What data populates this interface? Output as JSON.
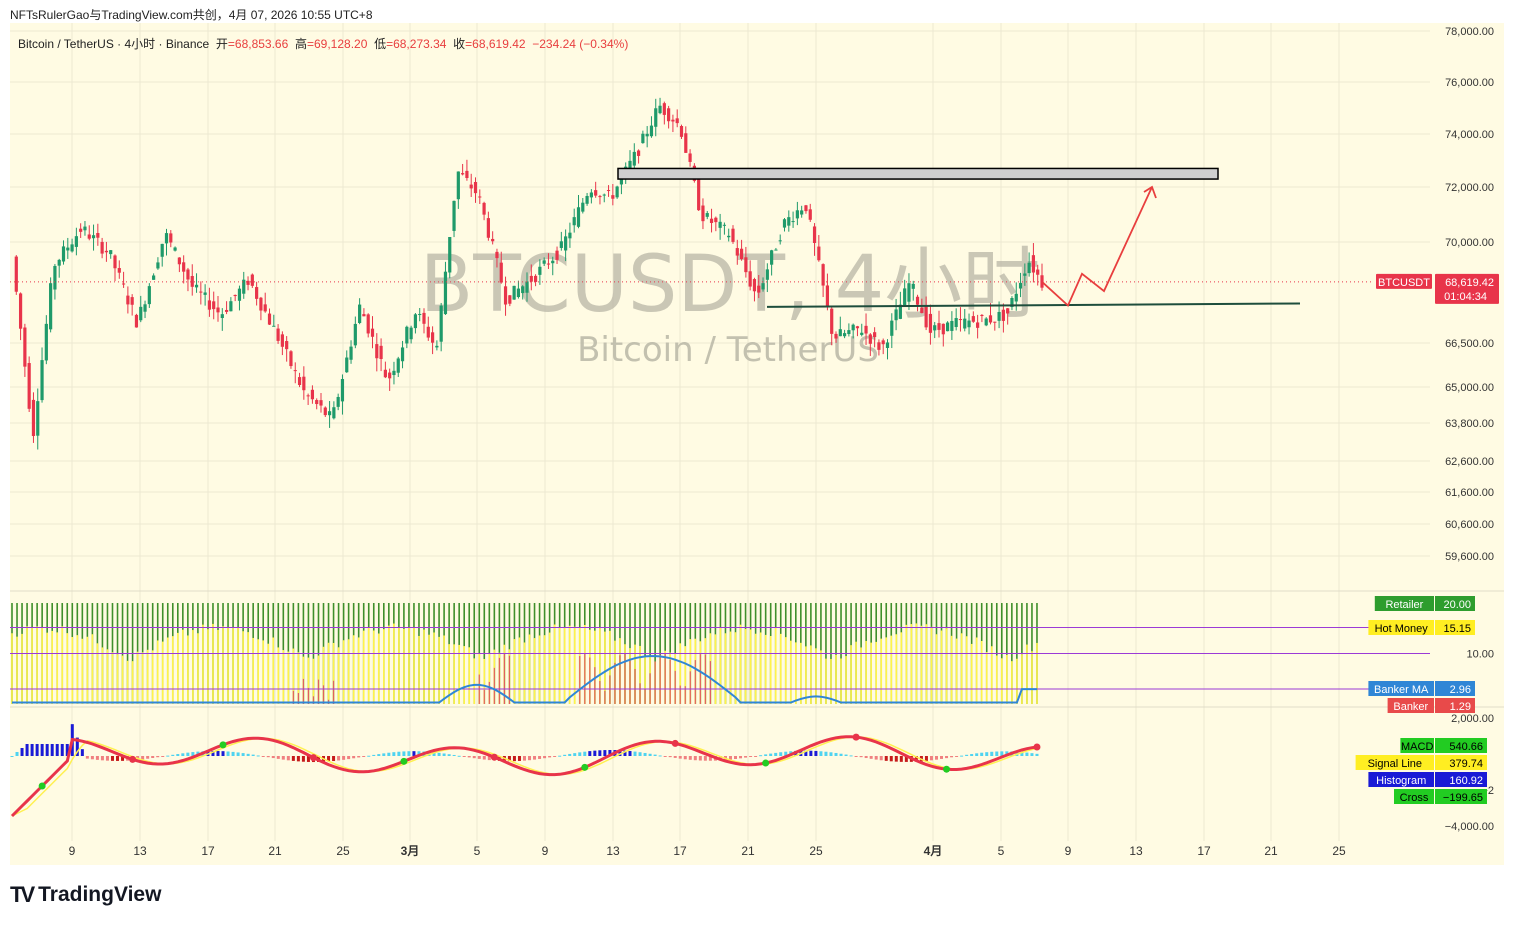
{
  "header": {
    "title": "NFTsRulerGao与TradingView.com共创，4月 07, 2026 10:55 UTC+8"
  },
  "legend": {
    "symbol": "Bitcoin / TetherUS · 4小时 · Binance",
    "open_label": "开",
    "open": "=68,853.66",
    "high_label": "高",
    "high": "=69,128.20",
    "low_label": "低",
    "low": "=68,273.34",
    "close_label": "收",
    "close": "=68,619.42",
    "change": "−234.24 (−0.34%)"
  },
  "watermark": {
    "line1": "BTCUSDT, 4小时",
    "line2": "Bitcoin / TetherUS"
  },
  "price_badge": {
    "symbol": "BTCUSDT",
    "price": "68,619.42",
    "countdown": "01:04:34"
  },
  "banker_badges": [
    {
      "label": "Retailer",
      "value": "20.00",
      "color": "#2e9d2e",
      "text_color": "#ffffff"
    },
    {
      "label": "Hot Money",
      "value": "15.15",
      "color": "#ffee22",
      "text_color": "#000000"
    },
    {
      "label": "Banker MA",
      "value": "2.96",
      "color": "#2f86d6",
      "text_color": "#ffffff"
    },
    {
      "label": "Banker",
      "value": "1.29",
      "color": "#e84a4a",
      "text_color": "#ffffff"
    }
  ],
  "macd_badges": [
    {
      "label": "MACD",
      "value": "540.66",
      "color": "#22cc22",
      "text_color": "#000000"
    },
    {
      "label": "Signal Line",
      "value": "379.74",
      "color": "#ffee22",
      "text_color": "#000000"
    },
    {
      "label": "Histogram",
      "value": "160.92",
      "color": "#1a1ad6",
      "text_color": "#ffffff"
    },
    {
      "label": "Cross",
      "value": "−199.65",
      "color": "#22cc22",
      "text_color": "#000000"
    }
  ],
  "branding": {
    "logo_text": "TradingView",
    "logo_icon": "tradingview-logo-icon"
  },
  "chart_data": [
    {
      "type": "candlestick",
      "title": "Bitcoin / TetherUS · 4小时 · Binance",
      "y_axis": {
        "tick_labels": [
          "78,000.00",
          "76,000.00",
          "74,000.00",
          "72,000.00",
          "70,000.00",
          "66,500.00",
          "65,000.00",
          "63,800.00",
          "62,600.00",
          "61,600.00",
          "60,600.00",
          "59,600.00"
        ],
        "tick_values": [
          78000,
          76000,
          74000,
          72000,
          70000,
          66500,
          65000,
          63800,
          62600,
          61600,
          60600,
          59600
        ]
      },
      "x_axis": {
        "tick_labels": [
          "9",
          "13",
          "17",
          "21",
          "25",
          "3月",
          "5",
          "9",
          "13",
          "17",
          "21",
          "25",
          "4月",
          "5",
          "9",
          "13",
          "17",
          "21",
          "25"
        ]
      },
      "last_price": 68619.42,
      "resistance_zone": [
        72300,
        72700
      ],
      "support_line": [
        67750,
        67800
      ],
      "projection_path": [
        {
          "day": "4月 7",
          "price": 68619
        },
        {
          "day": "4月 8",
          "price": 67800
        },
        {
          "day": "4月 9",
          "price": 68900
        },
        {
          "day": "4月 10",
          "price": 68300
        },
        {
          "day": "4月 12",
          "price": 72000
        }
      ],
      "price_path": [
        {
          "x": 0,
          "y": 69500
        },
        {
          "x": 3,
          "y": 63400
        },
        {
          "x": 6,
          "y": 69200
        },
        {
          "x": 10,
          "y": 70500
        },
        {
          "x": 14,
          "y": 69600
        },
        {
          "x": 18,
          "y": 67200
        },
        {
          "x": 22,
          "y": 70300
        },
        {
          "x": 26,
          "y": 68400
        },
        {
          "x": 30,
          "y": 67500
        },
        {
          "x": 34,
          "y": 68700
        },
        {
          "x": 38,
          "y": 66800
        },
        {
          "x": 42,
          "y": 64800
        },
        {
          "x": 46,
          "y": 63900
        },
        {
          "x": 50,
          "y": 67800
        },
        {
          "x": 54,
          "y": 65200
        },
        {
          "x": 58,
          "y": 67600
        },
        {
          "x": 61,
          "y": 66300
        },
        {
          "x": 64,
          "y": 72600
        },
        {
          "x": 67,
          "y": 71700
        },
        {
          "x": 71,
          "y": 68000
        },
        {
          "x": 75,
          "y": 68800
        },
        {
          "x": 79,
          "y": 69800
        },
        {
          "x": 83,
          "y": 72000
        },
        {
          "x": 86,
          "y": 71600
        },
        {
          "x": 90,
          "y": 73400
        },
        {
          "x": 93,
          "y": 75100
        },
        {
          "x": 96,
          "y": 74300
        },
        {
          "x": 99,
          "y": 71000
        },
        {
          "x": 103,
          "y": 70300
        },
        {
          "x": 107,
          "y": 68100
        },
        {
          "x": 111,
          "y": 70700
        },
        {
          "x": 114,
          "y": 71400
        },
        {
          "x": 118,
          "y": 66700
        },
        {
          "x": 122,
          "y": 67000
        },
        {
          "x": 125,
          "y": 66300
        },
        {
          "x": 129,
          "y": 68600
        },
        {
          "x": 132,
          "y": 66900
        },
        {
          "x": 136,
          "y": 67200
        },
        {
          "x": 140,
          "y": 67300
        },
        {
          "x": 143,
          "y": 67500
        },
        {
          "x": 146,
          "y": 69400
        },
        {
          "x": 148,
          "y": 68600
        }
      ]
    },
    {
      "type": "area",
      "title": "Banker / Hot Money / Retailer",
      "y_axis": {
        "tick_labels": [
          "10.00"
        ],
        "levels": [
          20,
          15.15,
          10,
          2.96
        ]
      },
      "series": [
        {
          "name": "Retailer",
          "values": [
            20
          ]
        },
        {
          "name": "Hot Money",
          "values": [
            15.15
          ]
        },
        {
          "name": "Banker MA",
          "values": [
            2.96
          ]
        },
        {
          "name": "Banker",
          "values": [
            1.29
          ]
        }
      ]
    },
    {
      "type": "line",
      "title": "MACD",
      "y_axis": {
        "tick_labels": [
          "2,000.00",
          "−2",
          "−4,000.00"
        ]
      },
      "series": [
        {
          "name": "MACD",
          "values": [
            540.66
          ]
        },
        {
          "name": "Signal Line",
          "values": [
            379.74
          ]
        },
        {
          "name": "Histogram",
          "values": [
            160.92
          ]
        },
        {
          "name": "Cross",
          "values": [
            -199.65
          ]
        }
      ]
    }
  ]
}
